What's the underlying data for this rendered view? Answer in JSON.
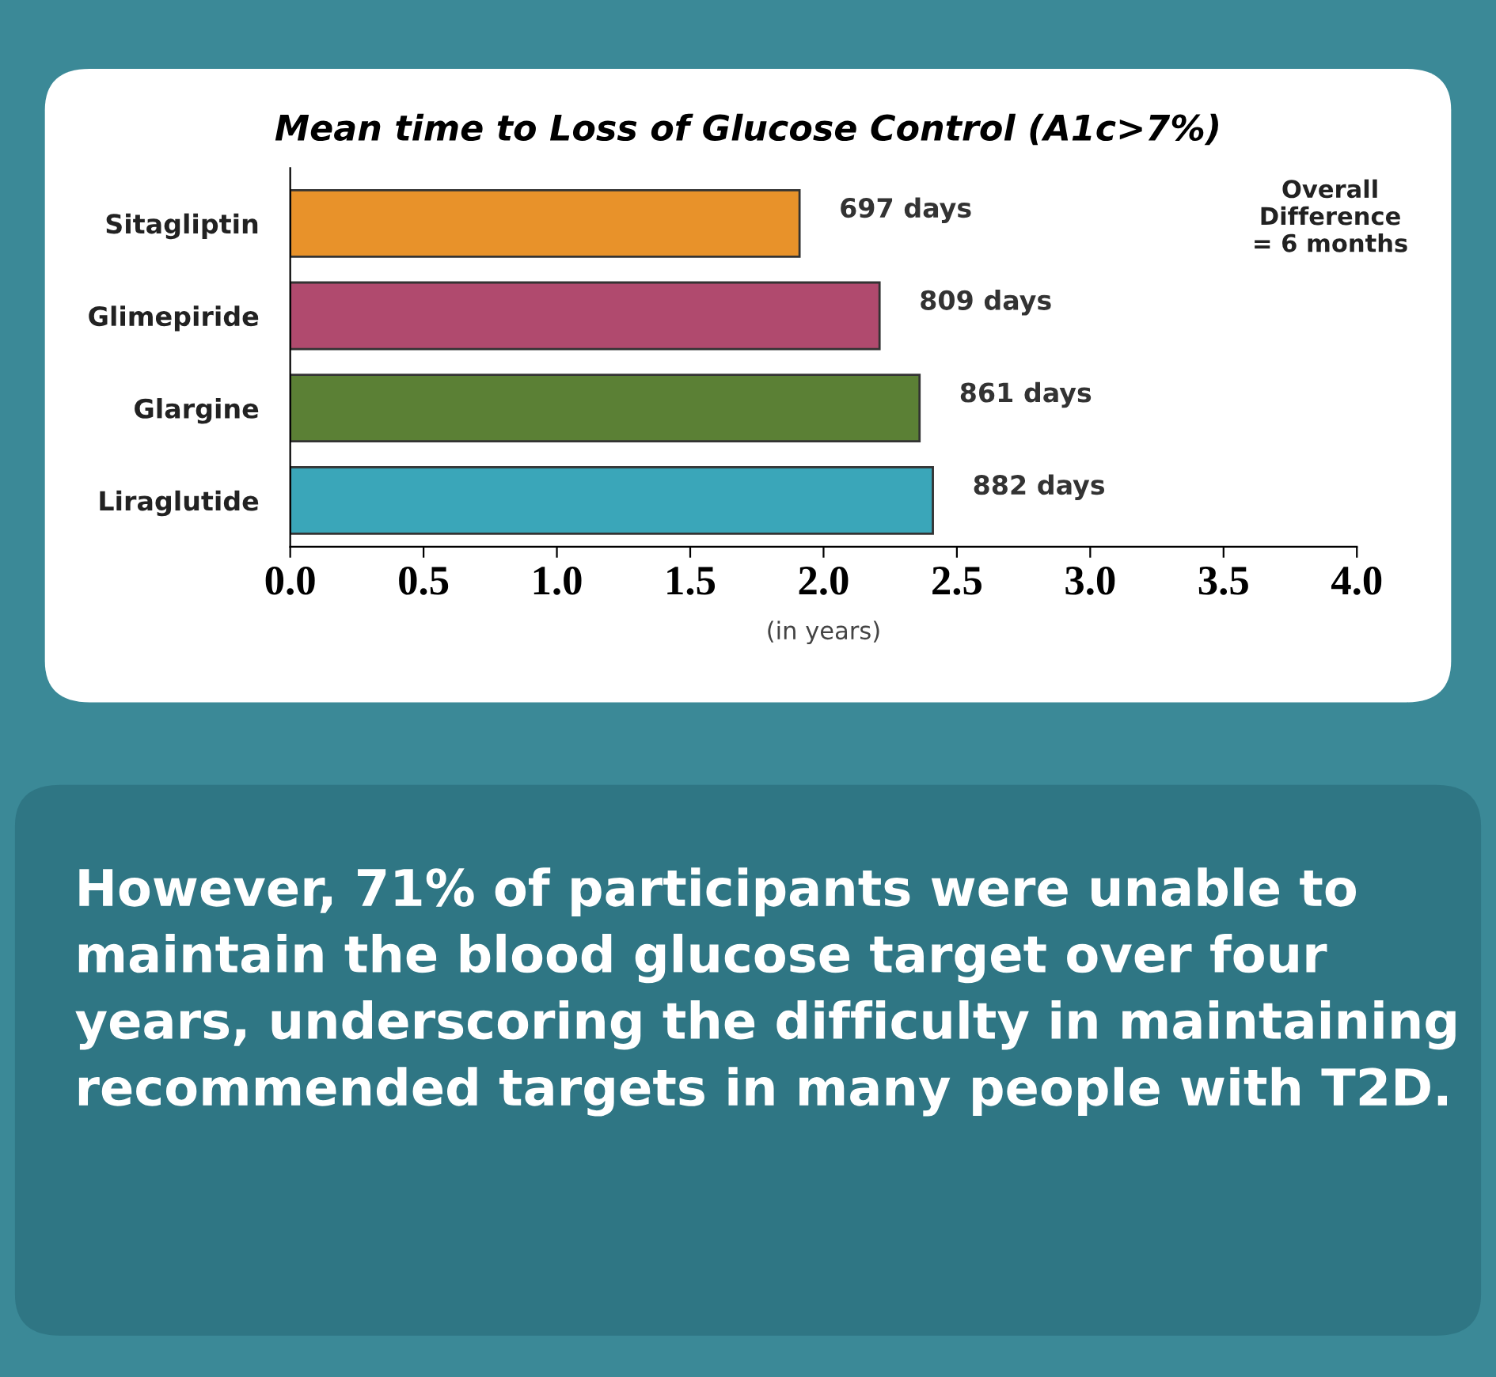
{
  "chart_data": {
    "type": "bar",
    "orientation": "horizontal",
    "title": "Mean time to Loss of Glucose Control (A1c>7%)",
    "xlabel": "(in years)",
    "categories": [
      "Sitagliptin",
      "Glimepiride",
      "Glargine",
      "Liraglutide"
    ],
    "values": [
      1.91,
      2.21,
      2.36,
      2.41
    ],
    "colors": [
      "#e8922a",
      "#b04a6e",
      "#5b8035",
      "#3aa6b9"
    ],
    "xlim": [
      0,
      4
    ],
    "xticks": [
      {
        "value": 0,
        "label": "0.0"
      },
      {
        "value": 0.5,
        "label": "0.5"
      },
      {
        "value": 1,
        "label": "1.0"
      },
      {
        "value": 1.5,
        "label": "1.5"
      },
      {
        "value": 2,
        "label": "2.0"
      },
      {
        "value": 2.5,
        "label": "2.5"
      },
      {
        "value": 3,
        "label": "3.0"
      },
      {
        "value": 3.5,
        "label": "3.5"
      },
      {
        "value": 4,
        "label": "4.0"
      }
    ],
    "grid": false,
    "annotations": [
      {
        "text": "697 days",
        "x": 1.91,
        "y": "Sitagliptin"
      },
      {
        "text": "809 days",
        "x": 2.21,
        "y": "Glimepiride"
      },
      {
        "text": "861 days",
        "x": 2.36,
        "y": "Glargine"
      },
      {
        "text": "882 days",
        "x": 2.41,
        "y": "Liraglutide"
      },
      "Overall\nDifference\n= 6 months",
      "However, 71% of participants were unable to maintain the blood glucose target over four years, underscoring the difficulty in maintaining recommended targets in many people with T2D."
    ]
  }
}
